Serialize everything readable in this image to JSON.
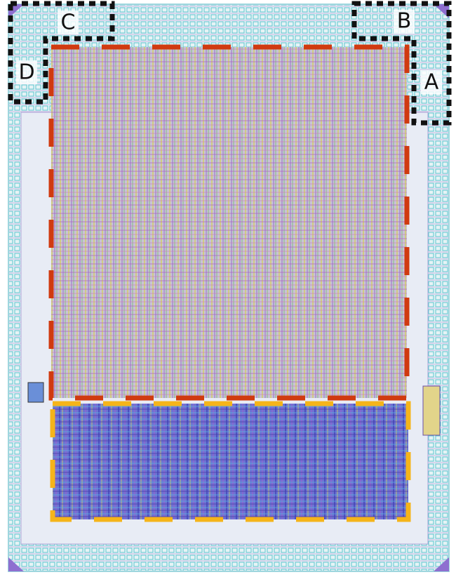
{
  "labels": [
    "A",
    "B",
    "C",
    "D"
  ]
}
